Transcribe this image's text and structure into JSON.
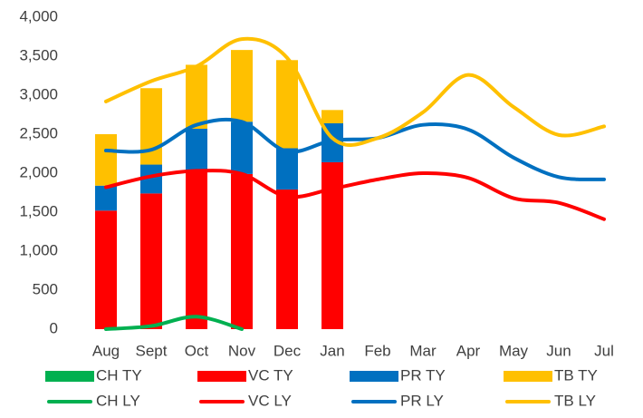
{
  "chart_data": {
    "type": "bar",
    "categories": [
      "Aug",
      "Sept",
      "Oct",
      "Nov",
      "Dec",
      "Jan",
      "Feb",
      "Mar",
      "Apr",
      "May",
      "Jun",
      "Jul"
    ],
    "ylim": [
      0,
      4000
    ],
    "yticks": [
      0,
      500,
      {
        "value": 1000,
        "label": "1,000"
      },
      {
        "value": 1500,
        "label": "1,500"
      },
      {
        "value": 2000,
        "label": "2,000"
      },
      {
        "value": 2500,
        "label": "2,500"
      },
      {
        "value": 3000,
        "label": "3,000"
      },
      {
        "value": 3500,
        "label": "3,500"
      },
      {
        "value": 4000,
        "label": "4,000"
      }
    ],
    "stacked": true,
    "series": [
      {
        "name": "CH TY",
        "color": "#00b050",
        "kind": "bar",
        "values": [
          0,
          0,
          0,
          0,
          0,
          0,
          null,
          null,
          null,
          null,
          null,
          null
        ]
      },
      {
        "name": "VC TY",
        "color": "#ff0000",
        "kind": "bar",
        "values": [
          1520,
          1740,
          2030,
          1990,
          1790,
          2140,
          null,
          null,
          null,
          null,
          null,
          null
        ]
      },
      {
        "name": "PR TY",
        "color": "#0070c0",
        "kind": "bar",
        "values": [
          320,
          370,
          540,
          670,
          530,
          500,
          null,
          null,
          null,
          null,
          null,
          null
        ]
      },
      {
        "name": "TB TY",
        "color": "#ffc000",
        "kind": "bar",
        "values": [
          660,
          980,
          820,
          920,
          1130,
          170,
          null,
          null,
          null,
          null,
          null,
          null
        ]
      },
      {
        "name": "CH LY",
        "color": "#00b050",
        "kind": "line",
        "values": [
          0,
          40,
          160,
          0,
          null,
          null,
          null,
          null,
          null,
          null,
          null,
          null
        ]
      },
      {
        "name": "VC LY",
        "color": "#ff0000",
        "kind": "line",
        "values": [
          1820,
          1960,
          2030,
          1990,
          1700,
          1800,
          1920,
          2000,
          1940,
          1680,
          1620,
          1410
        ]
      },
      {
        "name": "PR LY",
        "color": "#0070c0",
        "kind": "line",
        "values": [
          2290,
          2300,
          2620,
          2660,
          2280,
          2420,
          2450,
          2620,
          2560,
          2200,
          1950,
          1920
        ]
      },
      {
        "name": "TB LY",
        "color": "#ffc000",
        "kind": "line",
        "values": [
          2920,
          3180,
          3370,
          3720,
          3480,
          2450,
          2450,
          2780,
          3260,
          2850,
          2490,
          2600
        ]
      }
    ]
  }
}
